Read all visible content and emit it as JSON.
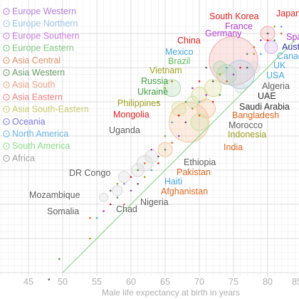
{
  "chart_data": {
    "type": "scatter",
    "xlabel": "Male life expectancy at birth in years",
    "xlim": [
      41,
      85
    ],
    "ylim": [
      41,
      85
    ],
    "xticks": [
      45,
      50,
      55,
      60,
      65,
      70,
      75,
      80,
      85
    ],
    "grid": true,
    "reference_line": "y = x",
    "legend": {
      "placement": "top-left",
      "entries": [
        {
          "name": "Europe Western",
          "color": "#b57ee0"
        },
        {
          "name": "Europe Northern",
          "color": "#9fc3ea"
        },
        {
          "name": "Europe Southern",
          "color": "#c97ee0"
        },
        {
          "name": "Europe Eastern",
          "color": "#7fc97f"
        },
        {
          "name": "Asia Central",
          "color": "#e0916a"
        },
        {
          "name": "Asia Western",
          "color": "#6a9a6a"
        },
        {
          "name": "Asia South",
          "color": "#f0a080"
        },
        {
          "name": "Asia Eastern",
          "color": "#f08080"
        },
        {
          "name": "Asia South-Eastern",
          "color": "#c8c870"
        },
        {
          "name": "Oceania",
          "color": "#7a7adf"
        },
        {
          "name": "North America",
          "color": "#6ab6ea"
        },
        {
          "name": "South America",
          "color": "#8adf8a"
        },
        {
          "name": "Africa",
          "color": "#a0a0a0"
        }
      ]
    },
    "countries": [
      {
        "name": "Japan",
        "x": 81.5,
        "y": 87.5,
        "color": "#e22020"
      },
      {
        "name": "South Korea",
        "x": 80,
        "y": 86.5,
        "color": "#e22020"
      },
      {
        "name": "France",
        "x": 79.5,
        "y": 85.5,
        "color": "#b03ad0"
      },
      {
        "name": "Germany",
        "x": 79,
        "y": 84,
        "color": "#b03ad0"
      },
      {
        "name": "China",
        "x": 75,
        "y": 81,
        "color": "#e22020"
      },
      {
        "name": "Spain",
        "x": 80.5,
        "y": 86,
        "color": "#b03ad0"
      },
      {
        "name": "Australia",
        "x": 81,
        "y": 85,
        "color": "#3a3aa0"
      },
      {
        "name": "Canada",
        "x": 80,
        "y": 84,
        "color": "#4aa8e0"
      },
      {
        "name": "UK",
        "x": 79.5,
        "y": 83,
        "color": "#4aa8e0"
      },
      {
        "name": "USA",
        "x": 76,
        "y": 81,
        "color": "#4aa8e0"
      },
      {
        "name": "Mexico",
        "x": 72,
        "y": 78,
        "color": "#4aa8e0"
      },
      {
        "name": "Brazil",
        "x": 72,
        "y": 79,
        "color": "#60c060"
      },
      {
        "name": "Vietnam",
        "x": 71,
        "y": 79,
        "color": "#a0a020"
      },
      {
        "name": "Russia",
        "x": 66,
        "y": 77,
        "color": "#40a040"
      },
      {
        "name": "Ukraine",
        "x": 67,
        "y": 77,
        "color": "#40a040"
      },
      {
        "name": "Algeria",
        "x": 76,
        "y": 78,
        "color": "#606060"
      },
      {
        "name": "UAE",
        "x": 77,
        "y": 79,
        "color": "#303030"
      },
      {
        "name": "Saudi Arabia",
        "x": 74,
        "y": 77,
        "color": "#303030"
      },
      {
        "name": "Philippines",
        "x": 67,
        "y": 74,
        "color": "#a0a020"
      },
      {
        "name": "Mongolia",
        "x": 65,
        "y": 74,
        "color": "#e22020"
      },
      {
        "name": "Bangladesh",
        "x": 71,
        "y": 74,
        "color": "#e06820"
      },
      {
        "name": "Morocco",
        "x": 72,
        "y": 76,
        "color": "#606060"
      },
      {
        "name": "Indonesia",
        "x": 68,
        "y": 73,
        "color": "#a0a020"
      },
      {
        "name": "India",
        "x": 68,
        "y": 71,
        "color": "#e06820"
      },
      {
        "name": "Uganda",
        "x": 59,
        "y": 64,
        "color": "#606060"
      },
      {
        "name": "Ethiopia",
        "x": 63,
        "y": 67,
        "color": "#606060"
      },
      {
        "name": "Pakistan",
        "x": 66,
        "y": 68,
        "color": "#e06820"
      },
      {
        "name": "Haiti",
        "x": 62,
        "y": 67,
        "color": "#4aa8e0"
      },
      {
        "name": "Afghanistan",
        "x": 62,
        "y": 65,
        "color": "#e06820"
      },
      {
        "name": "DR Congo",
        "x": 59,
        "y": 62,
        "color": "#606060"
      },
      {
        "name": "Mozambique",
        "x": 54,
        "y": 58,
        "color": "#606060"
      },
      {
        "name": "Nigeria",
        "x": 54,
        "y": 56,
        "color": "#606060"
      },
      {
        "name": "Chad",
        "x": 52,
        "y": 55,
        "color": "#606060"
      },
      {
        "name": "Somalia",
        "x": 54,
        "y": 55,
        "color": "#606060"
      }
    ]
  }
}
